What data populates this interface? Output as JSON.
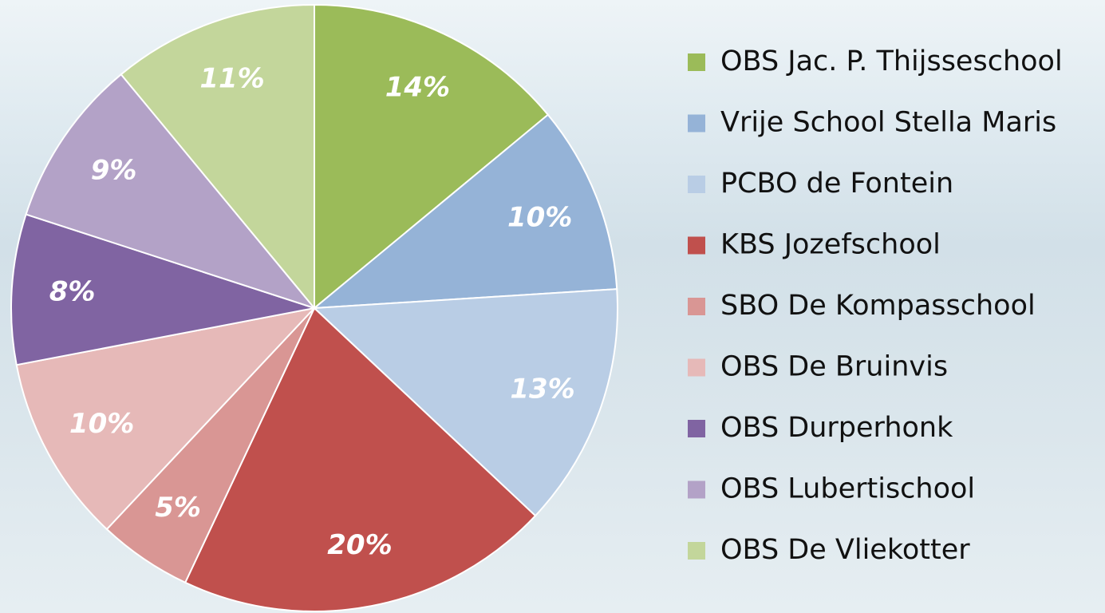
{
  "chart_data": {
    "type": "pie",
    "categories": [
      "OBS Jac. P. Thijsseschool",
      "Vrije School Stella Maris",
      "PCBO de Fontein",
      "KBS Jozefschool",
      "SBO De Kompasschool",
      "OBS De Bruinvis",
      "OBS Durperhonk",
      "OBS Lubertischool",
      "OBS De Vliekotter"
    ],
    "values": [
      14,
      10,
      13,
      20,
      5,
      10,
      8,
      9,
      11
    ],
    "value_labels": [
      "14%",
      "10%",
      "13%",
      "20%",
      "5%",
      "10%",
      "8%",
      "9%",
      "11%"
    ],
    "colors": [
      "#9bbb59",
      "#95b3d7",
      "#b9cde5",
      "#c0504d",
      "#d99694",
      "#e6b9b8",
      "#8064a2",
      "#b3a2c7",
      "#c3d69b"
    ],
    "legend": "right"
  }
}
